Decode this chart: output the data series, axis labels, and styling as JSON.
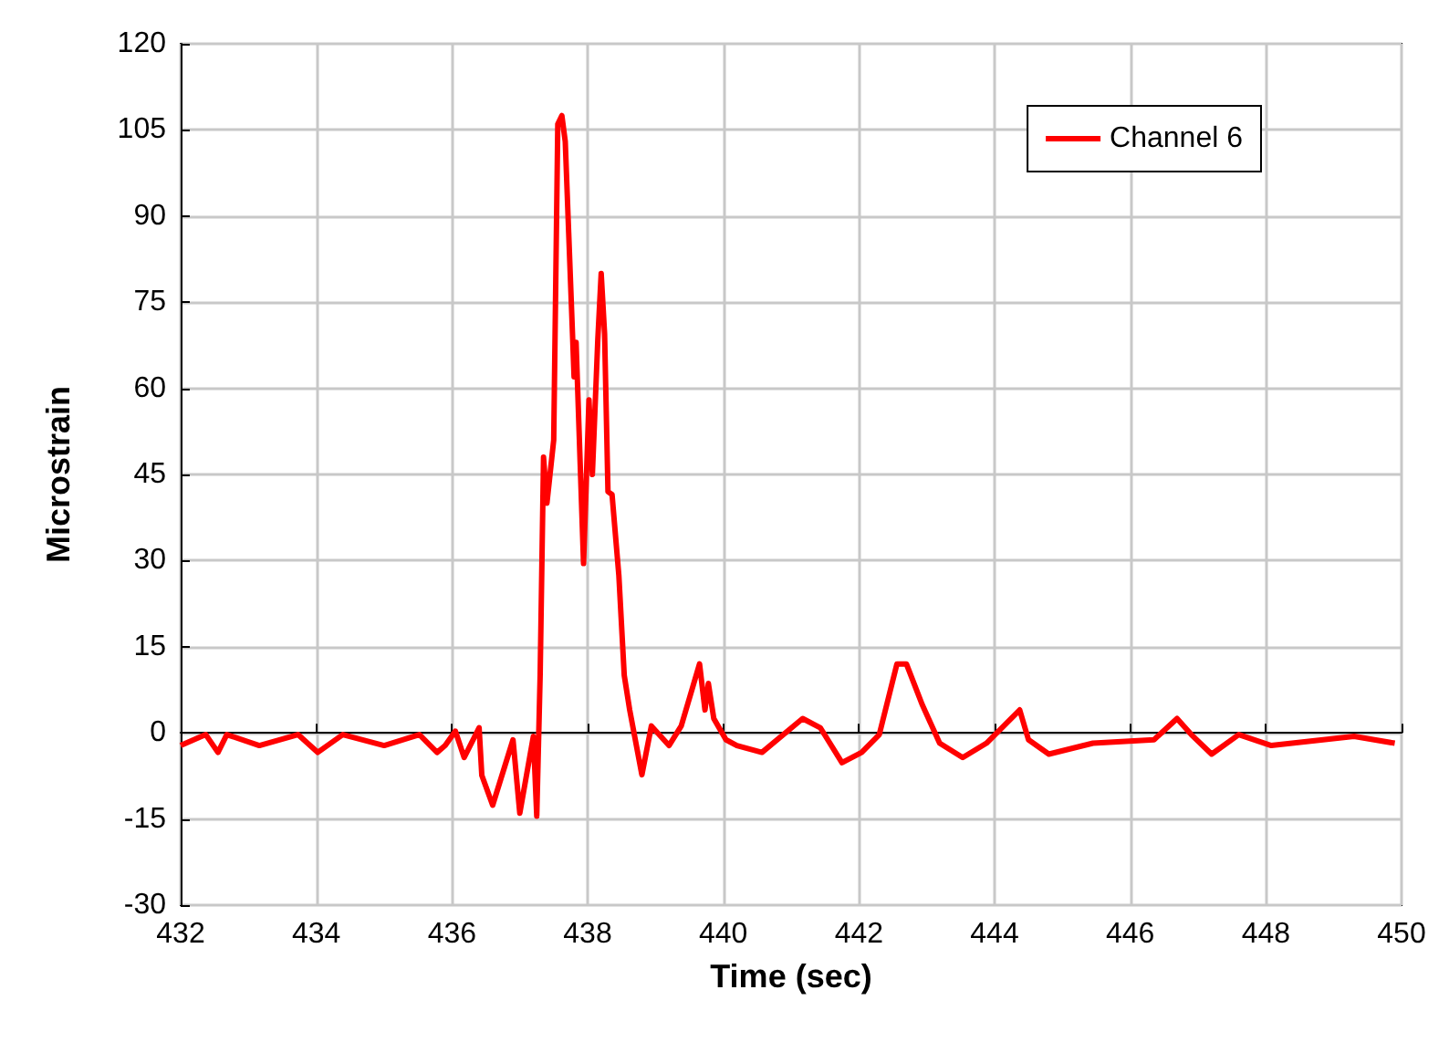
{
  "chart_data": {
    "type": "line",
    "xlabel": "Time (sec)",
    "ylabel": "Microstrain",
    "xlim": [
      432,
      450
    ],
    "xticks": [
      432,
      434,
      436,
      438,
      440,
      442,
      444,
      446,
      448,
      450
    ],
    "ylim": [
      -30,
      120
    ],
    "yticks": [
      -30,
      -15,
      0,
      15,
      30,
      45,
      60,
      75,
      90,
      105,
      120
    ],
    "grid": true,
    "legend": "top right",
    "marker": "none",
    "line_style": "solid",
    "series": [
      {
        "name": "Channel 6",
        "color": "#ff0000",
        "x": [
          432,
          432.37,
          432.55,
          432.68,
          433.16,
          433.73,
          434.02,
          434.39,
          435,
          435.52,
          435.78,
          435.9,
          436.05,
          436.18,
          436.4,
          436.44,
          436.6,
          436.9,
          437,
          437.2,
          437.25,
          437.3,
          437.35,
          437.4,
          437.5,
          437.56,
          437.62,
          437.67,
          437.78,
          437.8,
          437.83,
          437.94,
          438.02,
          438.07,
          438.15,
          438.2,
          438.25,
          438.3,
          438.36,
          438.46,
          438.54,
          438.62,
          438.8,
          438.94,
          439.2,
          439.38,
          439.65,
          439.73,
          439.78,
          439.86,
          440.04,
          440.2,
          440.57,
          441.17,
          441.43,
          441.75,
          442.04,
          442.3,
          442.56,
          442.7,
          442.93,
          443.19,
          443.53,
          443.88,
          444.37,
          444.5,
          444.8,
          445.45,
          446.35,
          446.69,
          446.9,
          447.2,
          447.6,
          448.08,
          449.3,
          449.9
        ],
        "values": [
          -2.2,
          -0.3,
          -3.4,
          -0.3,
          -2.2,
          -0.3,
          -3.4,
          -0.3,
          -2.2,
          -0.3,
          -3.4,
          -2.2,
          0.3,
          -4.3,
          0.9,
          -7.4,
          -12.6,
          -1.2,
          -14,
          -0.6,
          -14.5,
          10,
          48,
          40,
          51,
          106,
          107.5,
          103,
          68.5,
          62,
          68,
          29.5,
          58,
          45,
          68.5,
          80,
          69.5,
          42,
          41.5,
          27.5,
          10,
          4,
          -7.3,
          1.2,
          -2.2,
          1.2,
          12,
          4,
          8.6,
          2.5,
          -1.2,
          -2.2,
          -3.4,
          2.5,
          0.9,
          -5.2,
          -3.4,
          -0.3,
          12,
          12,
          5,
          -1.8,
          -4.3,
          -1.8,
          4,
          -1.2,
          -3.7,
          -1.8,
          -1.2,
          2.5,
          -0.3,
          -3.7,
          -0.3,
          -2.2,
          -0.6,
          -1.8
        ]
      }
    ]
  }
}
